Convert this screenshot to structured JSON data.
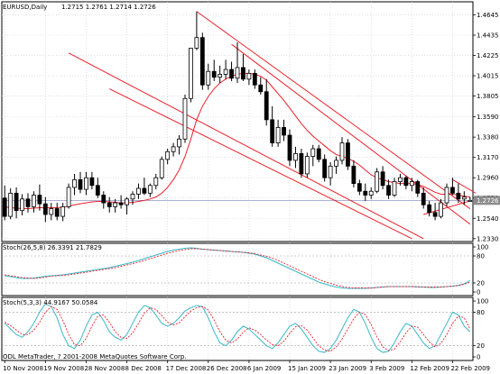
{
  "header": {
    "symbol": "EURUSD,Daily",
    "ohlc": "1.2715 1.2761 1.2714 1.2726"
  },
  "stoch1_header": "Stoch(26,5,8) 26.3391 21.7829",
  "stoch2_header": "Stoch(5,3,3) 44.9167 50.0584",
  "copyright": "ODL MetaTrader, ? 2001-2008 MetaQuotes Software Corp.",
  "colors": {
    "candle": "#000000",
    "channel": "#e8202a",
    "ma": "#e8202a",
    "stoch_main": "#38b8c8",
    "stoch_signal": "#e8202a",
    "grid": "#d0d0d0",
    "current_price_box": "#8c8c8c"
  },
  "chart_data": {
    "type": "candlestick",
    "y_ticks": [
      "1.4645",
      "1.4435",
      "1.4225",
      "1.4015",
      "1.3805",
      "1.3590",
      "1.3380",
      "1.3170",
      "1.2960",
      "1.2750",
      "1.2540",
      "1.2330"
    ],
    "current_price": "1.2726",
    "x_ticks": [
      "10 Nov 2008",
      "19 Nov 2008",
      "28 Nov 2008",
      "8 Dec 2008",
      "17 Dec 2008",
      "26 Dec 2008",
      "6 Jan 2009",
      "15 Jan 2009",
      "23 Jan 2009",
      "3 Feb 2009",
      "12 Feb 2009",
      "22 Feb 2009"
    ],
    "ylim": [
      1.23,
      1.478
    ],
    "candles": [
      [
        1.275,
        1.288,
        1.252,
        1.256
      ],
      [
        1.256,
        1.285,
        1.253,
        1.28
      ],
      [
        1.28,
        1.286,
        1.254,
        1.262
      ],
      [
        1.262,
        1.279,
        1.257,
        1.274
      ],
      [
        1.274,
        1.28,
        1.26,
        1.266
      ],
      [
        1.266,
        1.282,
        1.26,
        1.278
      ],
      [
        1.278,
        1.289,
        1.262,
        1.269
      ],
      [
        1.269,
        1.276,
        1.25,
        1.258
      ],
      [
        1.258,
        1.27,
        1.252,
        1.264
      ],
      [
        1.264,
        1.27,
        1.252,
        1.256
      ],
      [
        1.256,
        1.27,
        1.251,
        1.266
      ],
      [
        1.266,
        1.29,
        1.264,
        1.286
      ],
      [
        1.286,
        1.3,
        1.278,
        1.294
      ],
      [
        1.294,
        1.302,
        1.28,
        1.284
      ],
      [
        1.284,
        1.302,
        1.278,
        1.296
      ],
      [
        1.296,
        1.302,
        1.284,
        1.288
      ],
      [
        1.288,
        1.296,
        1.275,
        1.278
      ],
      [
        1.278,
        1.282,
        1.264,
        1.27
      ],
      [
        1.27,
        1.276,
        1.26,
        1.266
      ],
      [
        1.266,
        1.274,
        1.26,
        1.27
      ],
      [
        1.27,
        1.278,
        1.264,
        1.268
      ],
      [
        1.268,
        1.276,
        1.258,
        1.274
      ],
      [
        1.274,
        1.282,
        1.268,
        1.279
      ],
      [
        1.279,
        1.29,
        1.274,
        1.285
      ],
      [
        1.285,
        1.296,
        1.278,
        1.28
      ],
      [
        1.28,
        1.29,
        1.276,
        1.288
      ],
      [
        1.288,
        1.3,
        1.284,
        1.296
      ],
      [
        1.296,
        1.318,
        1.294,
        1.315
      ],
      [
        1.315,
        1.326,
        1.31,
        1.323
      ],
      [
        1.323,
        1.332,
        1.318,
        1.328
      ],
      [
        1.328,
        1.34,
        1.32,
        1.336
      ],
      [
        1.336,
        1.382,
        1.332,
        1.378
      ],
      [
        1.378,
        1.43,
        1.374,
        1.43
      ],
      [
        1.43,
        1.468,
        1.428,
        1.441
      ],
      [
        1.441,
        1.446,
        1.387,
        1.392
      ],
      [
        1.392,
        1.414,
        1.387,
        1.406
      ],
      [
        1.406,
        1.418,
        1.396,
        1.4
      ],
      [
        1.4,
        1.412,
        1.394,
        1.403
      ],
      [
        1.403,
        1.418,
        1.398,
        1.408
      ],
      [
        1.408,
        1.416,
        1.396,
        1.399
      ],
      [
        1.399,
        1.436,
        1.394,
        1.41
      ],
      [
        1.41,
        1.424,
        1.396,
        1.398
      ],
      [
        1.398,
        1.408,
        1.392,
        1.404
      ],
      [
        1.404,
        1.408,
        1.388,
        1.392
      ],
      [
        1.392,
        1.4,
        1.382,
        1.385
      ],
      [
        1.385,
        1.398,
        1.35,
        1.356
      ],
      [
        1.356,
        1.37,
        1.328,
        1.332
      ],
      [
        1.332,
        1.356,
        1.328,
        1.348
      ],
      [
        1.348,
        1.356,
        1.334,
        1.34
      ],
      [
        1.34,
        1.346,
        1.308,
        1.314
      ],
      [
        1.314,
        1.328,
        1.306,
        1.321
      ],
      [
        1.321,
        1.326,
        1.296,
        1.3
      ],
      [
        1.3,
        1.322,
        1.296,
        1.318
      ],
      [
        1.318,
        1.33,
        1.308,
        1.326
      ],
      [
        1.326,
        1.33,
        1.312,
        1.315
      ],
      [
        1.315,
        1.32,
        1.292,
        1.296
      ],
      [
        1.296,
        1.312,
        1.288,
        1.308
      ],
      [
        1.308,
        1.318,
        1.3,
        1.314
      ],
      [
        1.314,
        1.338,
        1.31,
        1.332
      ],
      [
        1.332,
        1.336,
        1.304,
        1.308
      ],
      [
        1.308,
        1.314,
        1.286,
        1.29
      ],
      [
        1.29,
        1.294,
        1.278,
        1.282
      ],
      [
        1.282,
        1.29,
        1.272,
        1.278
      ],
      [
        1.278,
        1.286,
        1.274,
        1.282
      ],
      [
        1.282,
        1.306,
        1.28,
        1.302
      ],
      [
        1.302,
        1.308,
        1.284,
        1.288
      ],
      [
        1.288,
        1.294,
        1.274,
        1.278
      ],
      [
        1.278,
        1.296,
        1.276,
        1.292
      ],
      [
        1.292,
        1.3,
        1.288,
        1.296
      ],
      [
        1.296,
        1.298,
        1.284,
        1.288
      ],
      [
        1.288,
        1.296,
        1.282,
        1.292
      ],
      [
        1.292,
        1.294,
        1.276,
        1.28
      ],
      [
        1.28,
        1.286,
        1.264,
        1.268
      ],
      [
        1.268,
        1.272,
        1.256,
        1.26
      ],
      [
        1.26,
        1.27,
        1.252,
        1.256
      ],
      [
        1.256,
        1.274,
        1.254,
        1.27
      ],
      [
        1.27,
        1.29,
        1.266,
        1.286
      ],
      [
        1.286,
        1.296,
        1.278,
        1.28
      ],
      [
        1.28,
        1.29,
        1.27,
        1.274
      ],
      [
        1.274,
        1.282,
        1.268,
        1.276
      ],
      [
        1.2715,
        1.2761,
        1.2714,
        1.2726
      ]
    ],
    "ma": [
      1.266,
      1.265,
      1.2645,
      1.264,
      1.264,
      1.2645,
      1.265,
      1.265,
      1.265,
      1.265,
      1.2655,
      1.2665,
      1.268,
      1.269,
      1.27,
      1.271,
      1.2715,
      1.2715,
      1.271,
      1.2705,
      1.27,
      1.27,
      1.2705,
      1.2715,
      1.2725,
      1.274,
      1.276,
      1.28,
      1.286,
      1.294,
      1.304,
      1.318,
      1.336,
      1.356,
      1.37,
      1.38,
      1.388,
      1.394,
      1.398,
      1.401,
      1.403,
      1.404,
      1.404,
      1.403,
      1.401,
      1.397,
      1.39,
      1.383,
      1.376,
      1.368,
      1.36,
      1.352,
      1.345,
      1.339,
      1.334,
      1.329,
      1.324,
      1.32,
      1.318,
      1.316,
      1.313,
      1.309,
      1.304,
      1.299,
      1.296,
      1.294,
      1.292,
      1.291,
      1.29,
      1.29,
      1.29,
      1.289,
      1.287,
      1.284,
      1.281,
      1.279,
      1.279,
      1.279,
      1.278,
      1.277,
      1.276
    ],
    "channels": [
      {
        "x": [
          33,
          80
        ],
        "y": [
          1.468,
          1.264
        ]
      },
      {
        "x": [
          39,
          80
        ],
        "y": [
          1.434,
          1.248
        ]
      },
      {
        "x": [
          11,
          72
        ],
        "y": [
          1.425,
          1.233
        ]
      },
      {
        "x": [
          18,
          70
        ],
        "y": [
          1.388,
          1.233
        ]
      },
      {
        "x": [
          72,
          80
        ],
        "y": [
          1.258,
          1.272
        ]
      },
      {
        "x": [
          77,
          81
        ],
        "y": [
          1.294,
          1.28
        ]
      }
    ],
    "stoch1_ticks": [
      "100",
      "80",
      "20",
      "0"
    ],
    "stoch1_ylim": [
      0,
      100
    ],
    "stoch1_main": [
      36,
      34,
      32,
      30,
      30,
      31,
      33,
      35,
      36,
      37,
      38,
      40,
      42,
      44,
      46,
      48,
      50,
      52,
      54,
      57,
      60,
      63,
      66,
      70,
      74,
      78,
      82,
      86,
      90,
      93,
      95,
      97,
      98,
      97,
      95,
      94,
      93,
      92,
      91,
      90,
      89,
      88,
      86,
      84,
      80,
      76,
      70,
      64,
      58,
      52,
      46,
      40,
      34,
      28,
      22,
      18,
      14,
      11,
      9,
      8,
      8,
      8,
      8,
      9,
      10,
      11,
      12,
      12,
      12,
      12,
      12,
      11,
      11,
      10,
      10,
      11,
      12,
      13,
      15,
      18,
      26
    ],
    "stoch1_signal": [
      38,
      36,
      34,
      32,
      31,
      30,
      31,
      33,
      35,
      36,
      37,
      38,
      40,
      42,
      44,
      46,
      48,
      50,
      52,
      54,
      57,
      60,
      63,
      66,
      70,
      74,
      78,
      82,
      86,
      89,
      92,
      94,
      96,
      96,
      95,
      94,
      93,
      92,
      91,
      90,
      89,
      88,
      87,
      85,
      82,
      79,
      75,
      70,
      64,
      58,
      52,
      46,
      40,
      34,
      28,
      23,
      19,
      15,
      12,
      10,
      9,
      9,
      9,
      9,
      10,
      11,
      12,
      12,
      12,
      12,
      12,
      12,
      11,
      11,
      11,
      11,
      12,
      13,
      14,
      17,
      22
    ],
    "stoch2_ticks": [
      "100",
      "80",
      "20",
      "0"
    ],
    "stoch2_ylim": [
      0,
      100
    ],
    "stoch2_main": [
      60,
      50,
      40,
      35,
      45,
      60,
      80,
      95,
      90,
      70,
      40,
      20,
      15,
      30,
      55,
      75,
      80,
      65,
      45,
      35,
      30,
      40,
      60,
      80,
      92,
      88,
      75,
      60,
      55,
      60,
      70,
      82,
      88,
      92,
      90,
      70,
      45,
      25,
      20,
      30,
      45,
      55,
      50,
      40,
      30,
      20,
      15,
      25,
      40,
      55,
      60,
      50,
      35,
      20,
      10,
      8,
      15,
      30,
      50,
      70,
      85,
      80,
      60,
      35,
      15,
      8,
      10,
      25,
      45,
      60,
      55,
      40,
      25,
      15,
      20,
      40,
      60,
      80,
      75,
      55,
      45
    ],
    "stoch2_signal": [
      62,
      56,
      48,
      40,
      40,
      48,
      62,
      80,
      90,
      85,
      65,
      40,
      22,
      20,
      33,
      55,
      73,
      75,
      62,
      45,
      35,
      33,
      43,
      60,
      78,
      88,
      85,
      74,
      62,
      57,
      61,
      72,
      82,
      88,
      90,
      84,
      66,
      45,
      30,
      25,
      32,
      44,
      52,
      48,
      40,
      30,
      22,
      20,
      28,
      42,
      54,
      56,
      48,
      34,
      20,
      12,
      10,
      18,
      32,
      50,
      68,
      80,
      76,
      58,
      36,
      18,
      11,
      14,
      27,
      43,
      55,
      53,
      40,
      27,
      18,
      24,
      40,
      60,
      73,
      70,
      50
    ]
  }
}
